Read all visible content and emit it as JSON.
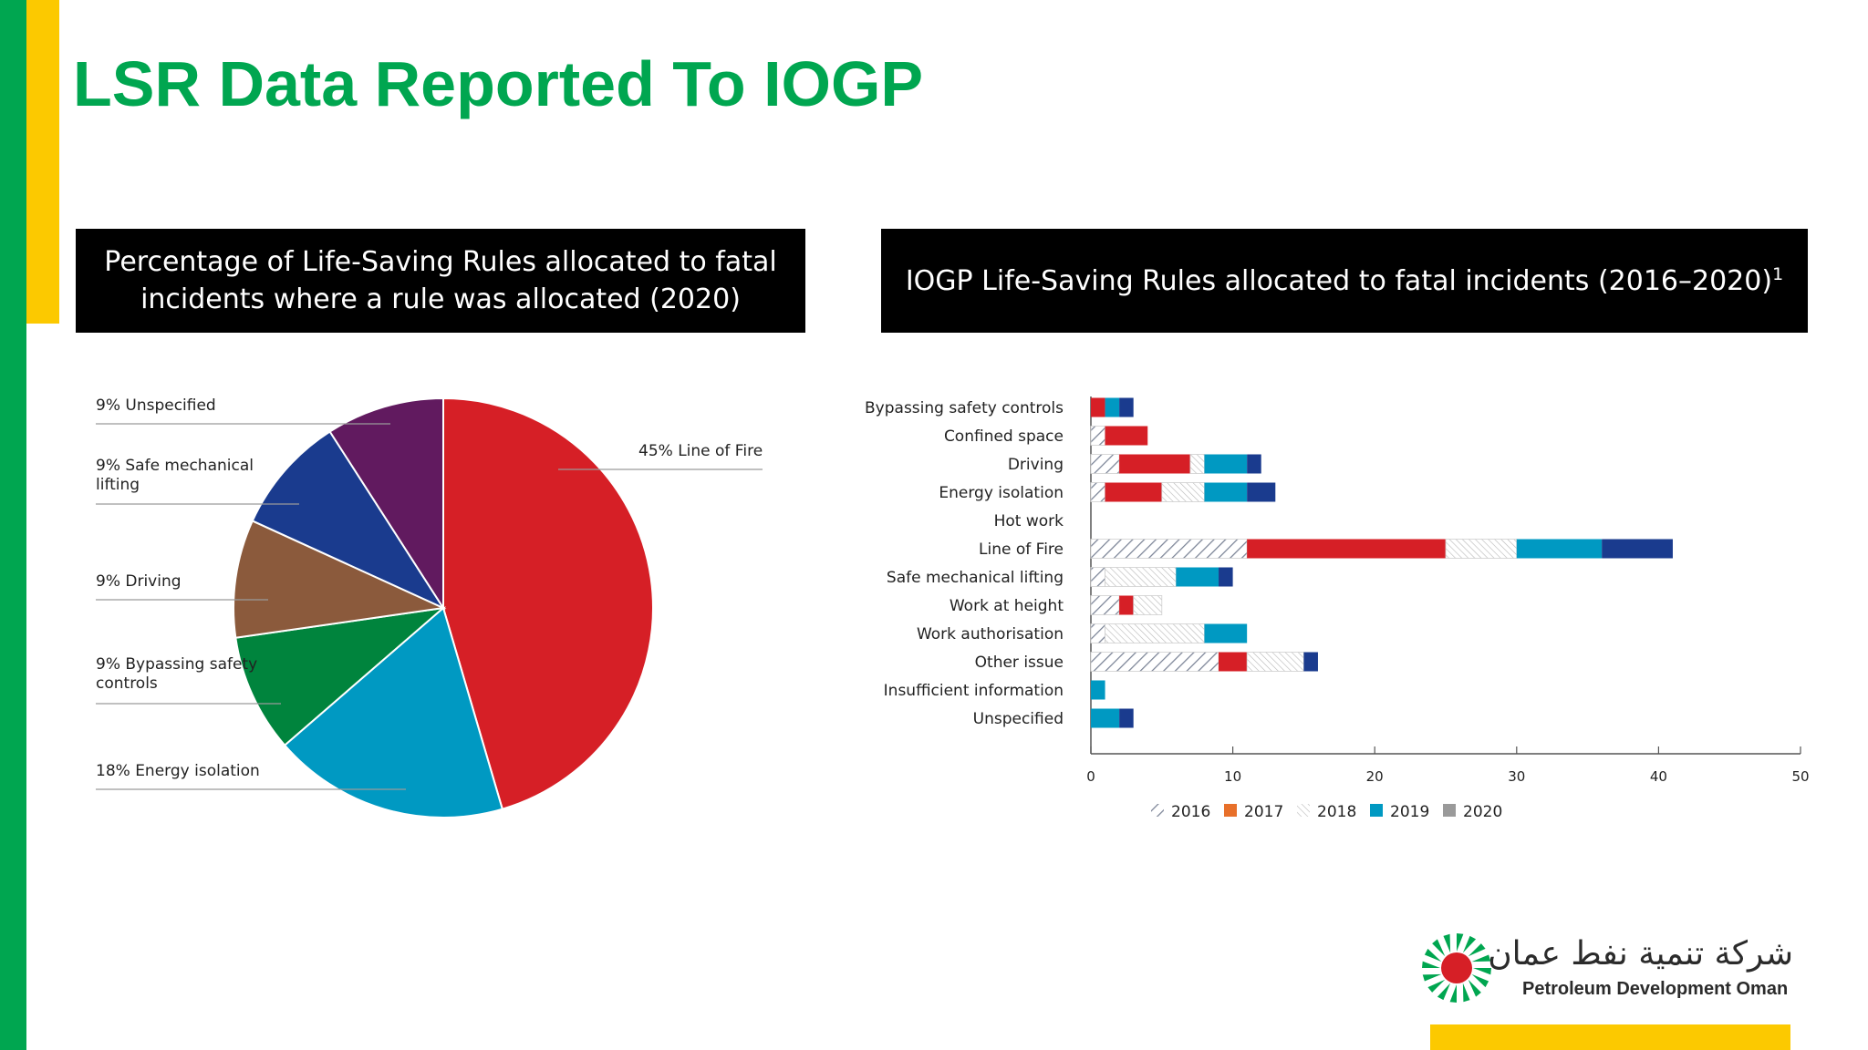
{
  "page": {
    "title": "LSR Data Reported To IOGP",
    "left_header": "Percentage of Life-Saving Rules allocated to fatal incidents where a rule was allocated (2020)",
    "left_header_line1": "Percentage of Life-Saving Rules allocated to fatal",
    "left_header_line2": "incidents where a rule was allocated (2020)",
    "right_header": "IOGP Life-Saving Rules allocated to fatal incidents (2016–2020)",
    "right_header_sup": "1",
    "logo_text": "Petroleum Development Oman",
    "logo_arabic": "شركة تنمية نفط عمان"
  },
  "colors": {
    "brand_green": "#00a650",
    "brand_yellow": "#fcc900",
    "2016": "#9aa3b5",
    "2017": "#d61f26",
    "2018": "#c8c8c8",
    "2019": "#0099c2",
    "2020": "#1a3b8e"
  },
  "chart_data": [
    {
      "type": "pie",
      "title": "Percentage of Life-Saving Rules allocated to fatal incidents where a rule was allocated (2020)",
      "slices": [
        {
          "label": "45% Line of Fire",
          "name": "Line of Fire",
          "value": 45,
          "color": "#d61f26"
        },
        {
          "label": "18% Energy isolation",
          "name": "Energy isolation",
          "value": 18,
          "color": "#0099c2"
        },
        {
          "label": "9% Bypassing safety controls",
          "name": "Bypassing safety controls",
          "value": 9,
          "color": "#00843d"
        },
        {
          "label": "9% Driving",
          "name": "Driving",
          "value": 9,
          "color": "#8b5a3c"
        },
        {
          "label": "9% Safe mechanical lifting",
          "name": "Safe mechanical lifting",
          "value": 9,
          "color": "#1a3b8e"
        },
        {
          "label": "9% Unspecified",
          "name": "Unspecified",
          "value": 9,
          "color": "#611a5f"
        }
      ]
    },
    {
      "type": "bar",
      "orientation": "horizontal",
      "stacked": true,
      "title": "IOGP Life-Saving Rules allocated to fatal incidents (2016–2020)",
      "categories": [
        "Bypassing safety controls",
        "Confined space",
        "Driving",
        "Energy isolation",
        "Hot work",
        "Line of Fire",
        "Safe mechanical lifting",
        "Work at height",
        "Work authorisation",
        "Other issue",
        "Insufficient information",
        "Unspecified"
      ],
      "series": [
        {
          "name": "2016",
          "values": [
            0,
            1,
            2,
            1,
            0,
            11,
            1,
            2,
            1,
            9,
            0,
            0
          ]
        },
        {
          "name": "2017",
          "values": [
            1,
            3,
            5,
            4,
            0,
            14,
            0,
            1,
            0,
            2,
            0,
            0
          ]
        },
        {
          "name": "2018",
          "values": [
            0,
            0,
            1,
            3,
            0,
            5,
            5,
            2,
            7,
            4,
            0,
            0
          ]
        },
        {
          "name": "2019",
          "values": [
            1,
            0,
            3,
            3,
            0,
            6,
            3,
            0,
            3,
            0,
            1,
            2
          ]
        },
        {
          "name": "2020",
          "values": [
            1,
            0,
            1,
            2,
            0,
            5,
            1,
            0,
            0,
            1,
            0,
            1
          ]
        }
      ],
      "xlim": [
        0,
        50
      ],
      "xticks": [
        "0",
        "10",
        "20",
        "30",
        "40",
        "50"
      ],
      "legend": [
        "2016",
        "2017",
        "2018",
        "2019",
        "2020"
      ],
      "legend_position": "bottom"
    }
  ]
}
